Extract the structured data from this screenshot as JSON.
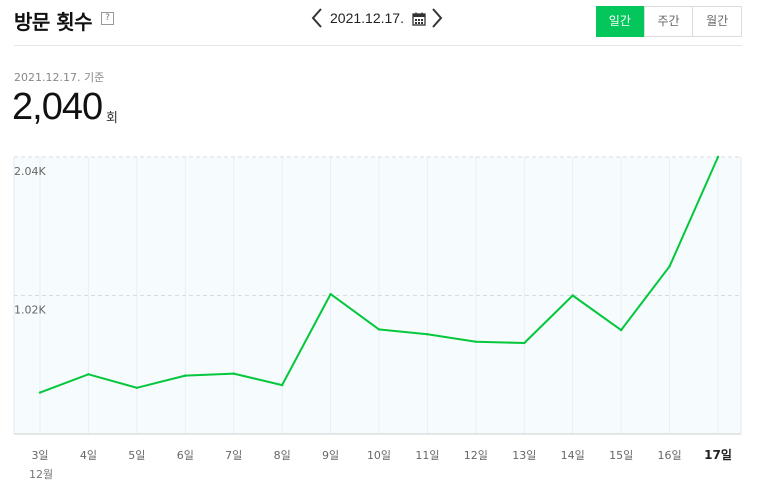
{
  "header": {
    "title": "방문 횟수",
    "help_glyph": "?",
    "date": "2021.12.17.",
    "tabs": [
      {
        "label": "일간",
        "active": true
      },
      {
        "label": "주간",
        "active": false
      },
      {
        "label": "월간",
        "active": false
      }
    ]
  },
  "summary": {
    "basis_label": "2021.12.17. 기준",
    "value": "2,040",
    "unit": "회"
  },
  "colors": {
    "accent": "#03c75a",
    "line": "#05c73c",
    "plot_bg": "#f6fbfe"
  },
  "chart_data": {
    "type": "line",
    "categories": [
      "3일",
      "4일",
      "5일",
      "6일",
      "7일",
      "8일",
      "9일",
      "10일",
      "11일",
      "12일",
      "13일",
      "14일",
      "15일",
      "16일",
      "17일"
    ],
    "values": [
      305,
      440,
      340,
      430,
      445,
      360,
      1030,
      770,
      735,
      680,
      670,
      1020,
      765,
      1235,
      2040
    ],
    "y_ticks": [
      {
        "value": 1020,
        "label": "1.02K"
      },
      {
        "value": 2040,
        "label": "2.04K"
      }
    ],
    "ylim": [
      0,
      2040
    ],
    "x_group_label": "12월",
    "grid": true
  }
}
